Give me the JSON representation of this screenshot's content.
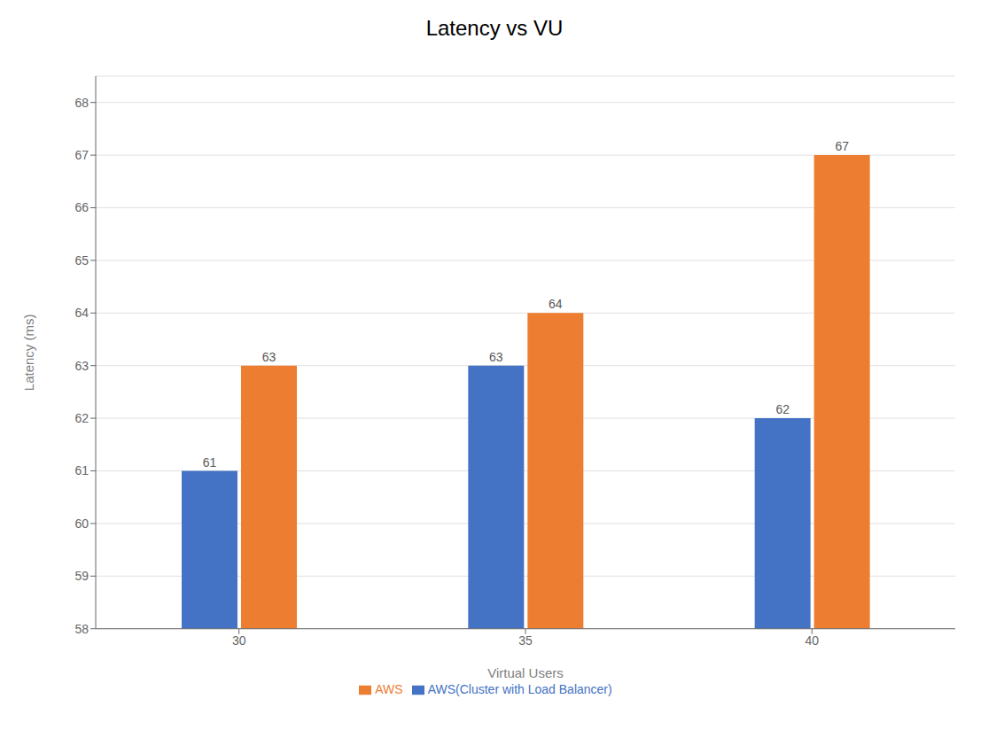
{
  "chart_data": {
    "type": "bar",
    "title": "Latency vs VU",
    "xlabel": "Virtual Users",
    "ylabel": "Latency (ms)",
    "categories": [
      "30",
      "35",
      "40"
    ],
    "series": [
      {
        "name": "AWS(Cluster with Load Balancer)",
        "color": "#4472C4",
        "values": [
          61,
          63,
          62
        ]
      },
      {
        "name": "AWS",
        "color": "#ED7D31",
        "values": [
          63,
          64,
          67
        ]
      }
    ],
    "ylim": [
      58,
      68.5
    ],
    "yticks": [
      58,
      59,
      60,
      61,
      62,
      63,
      64,
      65,
      66,
      67,
      68
    ],
    "grid": true,
    "data_labels": true,
    "legend": "bottom"
  }
}
